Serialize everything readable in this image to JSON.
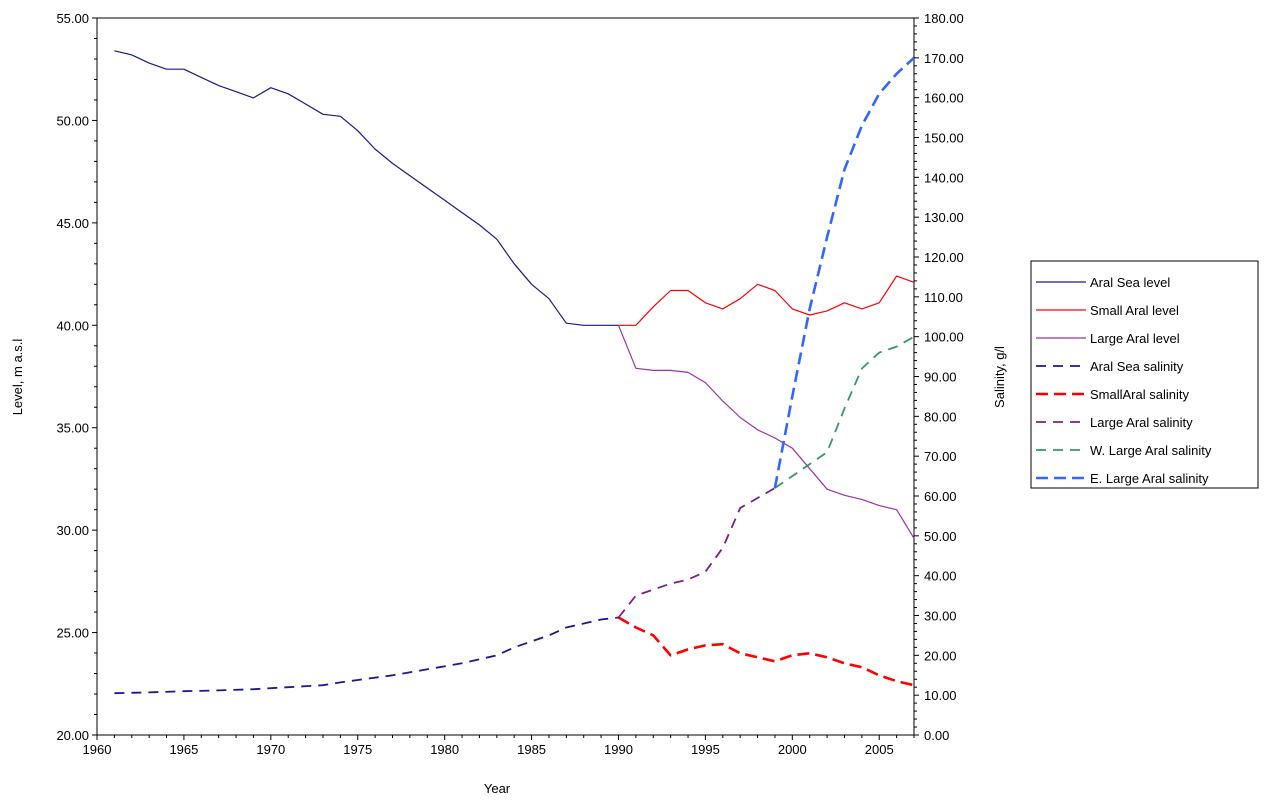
{
  "chart_data": {
    "type": "line",
    "title": "",
    "xlabel": "Year",
    "ylabel_left": "Level, m a.s.l",
    "ylabel_right": "Salinity, g/l",
    "xlim": [
      1960,
      2007
    ],
    "ylim_left": [
      20,
      55
    ],
    "ylim_right": [
      0,
      180
    ],
    "x_ticks": [
      1960,
      1965,
      1970,
      1975,
      1980,
      1985,
      1990,
      1995,
      2000,
      2005
    ],
    "y_left_ticks": [
      "20.00",
      "25.00",
      "30.00",
      "35.00",
      "40.00",
      "45.00",
      "50.00",
      "55.00"
    ],
    "y_right_ticks": [
      "0.00",
      "10.00",
      "20.00",
      "30.00",
      "40.00",
      "50.00",
      "60.00",
      "70.00",
      "80.00",
      "90.00",
      "100.00",
      "110.00",
      "120.00",
      "130.00",
      "140.00",
      "150.00",
      "160.00",
      "170.00",
      "180.00"
    ],
    "grid": false,
    "legend_position": "right",
    "series": [
      {
        "name": "Aral Sea level",
        "axis": "left",
        "color": "#1a1a8c",
        "dash": "solid",
        "x": [
          1961,
          1962,
          1963,
          1964,
          1965,
          1966,
          1967,
          1968,
          1969,
          1970,
          1971,
          1972,
          1973,
          1974,
          1975,
          1976,
          1977,
          1978,
          1979,
          1980,
          1981,
          1982,
          1983,
          1984,
          1985,
          1986,
          1987,
          1988,
          1989,
          1990
        ],
        "y": [
          53.4,
          53.2,
          52.8,
          52.5,
          52.5,
          52.1,
          51.7,
          51.4,
          51.1,
          51.6,
          51.3,
          50.8,
          50.3,
          50.2,
          49.5,
          48.6,
          47.9,
          47.3,
          46.7,
          46.1,
          45.5,
          44.9,
          44.2,
          43.0,
          42.0,
          41.3,
          40.1,
          40.0,
          40.0,
          40.0
        ]
      },
      {
        "name": "Small Aral level",
        "axis": "left",
        "color": "#ff0000",
        "dash": "solid",
        "x": [
          1990,
          1991,
          1992,
          1993,
          1994,
          1995,
          1996,
          1997,
          1998,
          1999,
          2000,
          2001,
          2002,
          2003,
          2004,
          2005,
          2006,
          2007
        ],
        "y": [
          40.0,
          40.0,
          40.9,
          41.7,
          41.7,
          41.1,
          40.8,
          41.3,
          42.0,
          41.7,
          40.8,
          40.5,
          40.7,
          41.1,
          40.8,
          41.1,
          42.4,
          42.1
        ]
      },
      {
        "name": "Large Aral level",
        "axis": "left",
        "color": "#9933aa",
        "dash": "solid",
        "x": [
          1990,
          1991,
          1992,
          1993,
          1994,
          1995,
          1996,
          1997,
          1998,
          1999,
          2000,
          2001,
          2002,
          2003,
          2004,
          2005,
          2006,
          2007
        ],
        "y": [
          40.0,
          37.9,
          37.8,
          37.8,
          37.7,
          37.2,
          36.3,
          35.5,
          34.9,
          34.5,
          34.0,
          33.0,
          32.0,
          31.7,
          31.5,
          31.2,
          31.0,
          29.6
        ]
      },
      {
        "name": "Aral Sea salinity",
        "axis": "right",
        "color": "#1a1a8c",
        "dash": "long",
        "x": [
          1961,
          1963,
          1965,
          1967,
          1969,
          1971,
          1973,
          1974,
          1975,
          1977,
          1979,
          1981,
          1983,
          1984,
          1985,
          1986,
          1987,
          1988,
          1989,
          1990
        ],
        "y": [
          10.5,
          10.7,
          11.0,
          11.2,
          11.5,
          12.0,
          12.5,
          13.2,
          13.8,
          15.0,
          16.5,
          18.0,
          20.0,
          22.0,
          23.5,
          25.0,
          27.0,
          28.0,
          29.0,
          29.5
        ]
      },
      {
        "name": "SmallAral salinity",
        "axis": "right",
        "color": "#ff0000",
        "dash": "long",
        "bold": true,
        "x": [
          1990,
          1991,
          1992,
          1993,
          1994,
          1995,
          1996,
          1997,
          1998,
          1999,
          2000,
          2001,
          2002,
          2003,
          2004,
          2005,
          2006,
          2007
        ],
        "y": [
          29.5,
          27.0,
          25.0,
          20.0,
          21.5,
          22.5,
          22.8,
          20.5,
          19.5,
          18.5,
          20.0,
          20.5,
          19.5,
          18.0,
          17.0,
          15.0,
          13.5,
          12.5
        ]
      },
      {
        "name": "Large Aral salinity",
        "axis": "right",
        "color": "#7a1f8a",
        "dash": "long",
        "x": [
          1990,
          1991,
          1992,
          1993,
          1994,
          1995,
          1996,
          1997,
          1998,
          1999
        ],
        "y": [
          29.5,
          35.0,
          36.5,
          38.0,
          39.0,
          41.0,
          47.0,
          57.0,
          59.5,
          62.0
        ]
      },
      {
        "name": "W. Large Aral salinity",
        "axis": "right",
        "color": "#339966",
        "dash": "long",
        "x": [
          1999,
          2000,
          2001,
          2002,
          2003,
          2004,
          2005,
          2006,
          2007
        ],
        "y": [
          62.0,
          65.0,
          68.0,
          71.0,
          82.0,
          92.0,
          96.0,
          97.5,
          100.0
        ]
      },
      {
        "name": "E. Large Aral salinity",
        "axis": "right",
        "color": "#3366ff",
        "dash": "long",
        "bold": true,
        "x": [
          1999,
          2000,
          2001,
          2002,
          2003,
          2004,
          2005,
          2006,
          2007
        ],
        "y": [
          62.0,
          85.0,
          107.0,
          125.0,
          142.0,
          153.0,
          161.0,
          166.0,
          170.0
        ]
      }
    ]
  }
}
